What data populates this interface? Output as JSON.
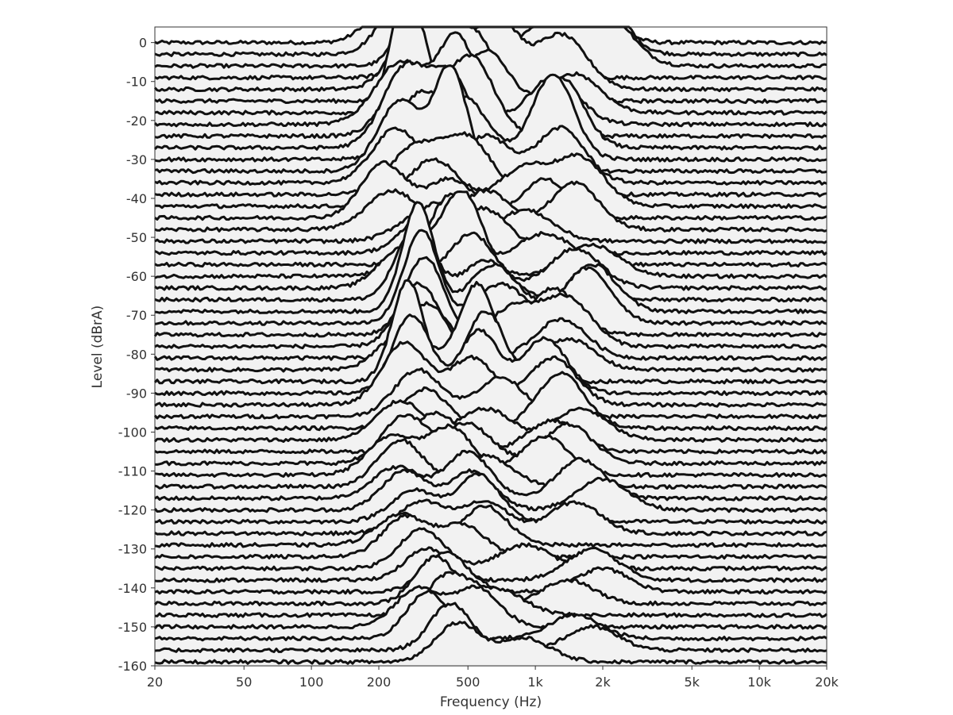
{
  "chart_data": {
    "type": "line",
    "title": "",
    "xlabel": "Frequency (Hz)",
    "ylabel": "Level (dBrA)",
    "x_scale": "log",
    "xlim": [
      20,
      20000
    ],
    "ylim": [
      -160,
      4
    ],
    "x_ticks": [
      {
        "value": 20,
        "label": "20"
      },
      {
        "value": 50,
        "label": "50"
      },
      {
        "value": 100,
        "label": "100"
      },
      {
        "value": 200,
        "label": "200"
      },
      {
        "value": 500,
        "label": "500"
      },
      {
        "value": 1000,
        "label": "1k"
      },
      {
        "value": 2000,
        "label": "2k"
      },
      {
        "value": 5000,
        "label": "5k"
      },
      {
        "value": 10000,
        "label": "10k"
      },
      {
        "value": 20000,
        "label": "20k"
      }
    ],
    "y_ticks": [
      0,
      -10,
      -20,
      -30,
      -40,
      -50,
      -60,
      -70,
      -80,
      -90,
      -100,
      -110,
      -120,
      -130,
      -140,
      -150,
      -160
    ],
    "grid": false,
    "line_color": "#111111",
    "fill_color": "#f2f2f2",
    "series_style": "stacked spectra (waterfall)",
    "series": [
      {
        "offset_db": 0,
        "peaks": [
          {
            "f": 260,
            "h": 18,
            "w": 0.16
          },
          {
            "f": 1050,
            "h": 26,
            "w": 0.12
          },
          {
            "f": 1700,
            "h": 18,
            "w": 0.14
          }
        ]
      },
      {
        "offset_db": -3,
        "peaks": [
          {
            "f": 290,
            "h": 22,
            "w": 0.16
          },
          {
            "f": 700,
            "h": 20,
            "w": 0.14
          },
          {
            "f": 1800,
            "h": 20,
            "w": 0.16
          }
        ]
      },
      {
        "offset_db": -6,
        "peaks": [
          {
            "f": 320,
            "h": 28,
            "w": 0.12
          },
          {
            "f": 1100,
            "h": 10,
            "w": 0.18
          },
          {
            "f": 1900,
            "h": 16,
            "w": 0.18
          }
        ]
      },
      {
        "offset_db": -9,
        "peaks": [
          {
            "f": 360,
            "h": 20,
            "w": 0.15
          },
          {
            "f": 550,
            "h": 28,
            "w": 0.12
          }
        ]
      },
      {
        "offset_db": -12,
        "peaks": [
          {
            "f": 300,
            "h": 18,
            "w": 0.15
          },
          {
            "f": 650,
            "h": 20,
            "w": 0.14
          },
          {
            "f": 1300,
            "h": 14,
            "w": 0.16
          }
        ]
      },
      {
        "offset_db": -15,
        "peaks": [
          {
            "f": 320,
            "h": 24,
            "w": 0.12
          },
          {
            "f": 520,
            "h": 18,
            "w": 0.14
          }
        ]
      },
      {
        "offset_db": -18,
        "peaks": [
          {
            "f": 270,
            "h": 34,
            "w": 0.1
          },
          {
            "f": 600,
            "h": 16,
            "w": 0.15
          },
          {
            "f": 1500,
            "h": 10,
            "w": 0.16
          }
        ]
      },
      {
        "offset_db": -21,
        "peaks": [
          {
            "f": 250,
            "h": 16,
            "w": 0.16
          },
          {
            "f": 450,
            "h": 22,
            "w": 0.12
          },
          {
            "f": 1200,
            "h": 12,
            "w": 0.16
          }
        ]
      },
      {
        "offset_db": -24,
        "peaks": [
          {
            "f": 280,
            "h": 18,
            "w": 0.15
          },
          {
            "f": 520,
            "h": 20,
            "w": 0.14
          }
        ]
      },
      {
        "offset_db": -27,
        "peaks": [
          {
            "f": 260,
            "h": 20,
            "w": 0.14
          },
          {
            "f": 420,
            "h": 18,
            "w": 0.13
          },
          {
            "f": 1300,
            "h": 18,
            "w": 0.14
          }
        ]
      },
      {
        "offset_db": -30,
        "peaks": [
          {
            "f": 300,
            "h": 16,
            "w": 0.15
          },
          {
            "f": 500,
            "h": 14,
            "w": 0.14
          },
          {
            "f": 1200,
            "h": 22,
            "w": 0.13
          }
        ]
      },
      {
        "offset_db": -33,
        "peaks": [
          {
            "f": 250,
            "h": 18,
            "w": 0.14
          },
          {
            "f": 420,
            "h": 26,
            "w": 0.1
          }
        ]
      },
      {
        "offset_db": -36,
        "peaks": [
          {
            "f": 240,
            "h": 14,
            "w": 0.15
          },
          {
            "f": 600,
            "h": 12,
            "w": 0.16
          },
          {
            "f": 1300,
            "h": 14,
            "w": 0.15
          }
        ]
      },
      {
        "offset_db": -39,
        "peaks": [
          {
            "f": 290,
            "h": 12,
            "w": 0.16
          },
          {
            "f": 500,
            "h": 14,
            "w": 0.15
          }
        ]
      },
      {
        "offset_db": -42,
        "peaks": [
          {
            "f": 350,
            "h": 12,
            "w": 0.16
          },
          {
            "f": 900,
            "h": 10,
            "w": 0.16
          },
          {
            "f": 1600,
            "h": 12,
            "w": 0.15
          }
        ]
      },
      {
        "offset_db": -45,
        "peaks": [
          {
            "f": 210,
            "h": 14,
            "w": 0.14
          },
          {
            "f": 420,
            "h": 10,
            "w": 0.15
          },
          {
            "f": 1100,
            "h": 10,
            "w": 0.14
          }
        ]
      },
      {
        "offset_db": -48,
        "peaks": [
          {
            "f": 230,
            "h": 10,
            "w": 0.16
          },
          {
            "f": 600,
            "h": 10,
            "w": 0.16
          },
          {
            "f": 1500,
            "h": 12,
            "w": 0.15
          }
        ]
      },
      {
        "offset_db": -51,
        "peaks": [
          {
            "f": 330,
            "h": 8,
            "w": 0.17
          },
          {
            "f": 900,
            "h": 8,
            "w": 0.17
          }
        ]
      },
      {
        "offset_db": -54,
        "peaks": [
          {
            "f": 350,
            "h": 12,
            "w": 0.16
          },
          {
            "f": 620,
            "h": 10,
            "w": 0.15
          }
        ]
      },
      {
        "offset_db": -57,
        "peaks": [
          {
            "f": 420,
            "h": 18,
            "w": 0.13
          },
          {
            "f": 1100,
            "h": 8,
            "w": 0.17
          }
        ]
      },
      {
        "offset_db": -60,
        "peaks": [
          {
            "f": 310,
            "h": 8,
            "w": 0.16
          },
          {
            "f": 480,
            "h": 20,
            "w": 0.12
          },
          {
            "f": 1800,
            "h": 8,
            "w": 0.17
          }
        ]
      },
      {
        "offset_db": -63,
        "peaks": [
          {
            "f": 250,
            "h": 10,
            "w": 0.14
          },
          {
            "f": 520,
            "h": 14,
            "w": 0.14
          },
          {
            "f": 1500,
            "h": 10,
            "w": 0.16
          }
        ]
      },
      {
        "offset_db": -66,
        "peaks": [
          {
            "f": 290,
            "h": 18,
            "w": 0.12
          },
          {
            "f": 600,
            "h": 10,
            "w": 0.15
          }
        ]
      },
      {
        "offset_db": -69,
        "peaks": [
          {
            "f": 300,
            "h": 28,
            "w": 0.1
          },
          {
            "f": 650,
            "h": 12,
            "w": 0.15
          },
          {
            "f": 1800,
            "h": 12,
            "w": 0.15
          }
        ]
      },
      {
        "offset_db": -72,
        "peaks": [
          {
            "f": 310,
            "h": 24,
            "w": 0.11
          },
          {
            "f": 700,
            "h": 10,
            "w": 0.15
          },
          {
            "f": 1700,
            "h": 14,
            "w": 0.15
          }
        ]
      },
      {
        "offset_db": -75,
        "peaks": [
          {
            "f": 320,
            "h": 20,
            "w": 0.12
          },
          {
            "f": 1200,
            "h": 12,
            "w": 0.15
          }
        ]
      },
      {
        "offset_db": -78,
        "peaks": [
          {
            "f": 300,
            "h": 16,
            "w": 0.13
          },
          {
            "f": 800,
            "h": 10,
            "w": 0.16
          },
          {
            "f": 1400,
            "h": 12,
            "w": 0.15
          }
        ]
      },
      {
        "offset_db": -81,
        "peaks": [
          {
            "f": 330,
            "h": 14,
            "w": 0.13
          },
          {
            "f": 1300,
            "h": 10,
            "w": 0.16
          }
        ]
      },
      {
        "offset_db": -84,
        "peaks": [
          {
            "f": 260,
            "h": 10,
            "w": 0.15
          },
          {
            "f": 550,
            "h": 22,
            "w": 0.11
          },
          {
            "f": 1400,
            "h": 8,
            "w": 0.16
          }
        ]
      },
      {
        "offset_db": -87,
        "peaks": [
          {
            "f": 270,
            "h": 26,
            "w": 0.1
          },
          {
            "f": 600,
            "h": 18,
            "w": 0.12
          }
        ]
      },
      {
        "offset_db": -90,
        "peaks": [
          {
            "f": 280,
            "h": 20,
            "w": 0.12
          },
          {
            "f": 560,
            "h": 16,
            "w": 0.12
          },
          {
            "f": 1100,
            "h": 14,
            "w": 0.14
          }
        ]
      },
      {
        "offset_db": -93,
        "peaks": [
          {
            "f": 260,
            "h": 16,
            "w": 0.14
          },
          {
            "f": 520,
            "h": 12,
            "w": 0.14
          },
          {
            "f": 1200,
            "h": 12,
            "w": 0.15
          }
        ]
      },
      {
        "offset_db": -96,
        "peaks": [
          {
            "f": 300,
            "h": 12,
            "w": 0.15
          },
          {
            "f": 700,
            "h": 10,
            "w": 0.15
          }
        ]
      },
      {
        "offset_db": -99,
        "peaks": [
          {
            "f": 320,
            "h": 10,
            "w": 0.15
          },
          {
            "f": 1300,
            "h": 14,
            "w": 0.15
          }
        ]
      },
      {
        "offset_db": -102,
        "peaks": [
          {
            "f": 250,
            "h": 10,
            "w": 0.15
          },
          {
            "f": 600,
            "h": 8,
            "w": 0.16
          },
          {
            "f": 1600,
            "h": 8,
            "w": 0.16
          }
        ]
      },
      {
        "offset_db": -105,
        "peaks": [
          {
            "f": 360,
            "h": 10,
            "w": 0.15
          },
          {
            "f": 1200,
            "h": 8,
            "w": 0.16
          }
        ]
      },
      {
        "offset_db": -108,
        "peaks": [
          {
            "f": 260,
            "h": 12,
            "w": 0.14
          },
          {
            "f": 500,
            "h": 10,
            "w": 0.15
          },
          {
            "f": 1400,
            "h": 10,
            "w": 0.15
          }
        ]
      },
      {
        "offset_db": -111,
        "peaks": [
          {
            "f": 230,
            "h": 10,
            "w": 0.15
          },
          {
            "f": 420,
            "h": 12,
            "w": 0.14
          },
          {
            "f": 1100,
            "h": 10,
            "w": 0.15
          }
        ]
      },
      {
        "offset_db": -114,
        "peaks": [
          {
            "f": 250,
            "h": 12,
            "w": 0.14
          },
          {
            "f": 600,
            "h": 8,
            "w": 0.16
          }
        ]
      },
      {
        "offset_db": -117,
        "peaks": [
          {
            "f": 240,
            "h": 8,
            "w": 0.15
          },
          {
            "f": 500,
            "h": 12,
            "w": 0.14
          },
          {
            "f": 1600,
            "h": 10,
            "w": 0.15
          }
        ]
      },
      {
        "offset_db": -120,
        "peaks": [
          {
            "f": 260,
            "h": 10,
            "w": 0.14
          },
          {
            "f": 520,
            "h": 10,
            "w": 0.14
          },
          {
            "f": 2000,
            "h": 8,
            "w": 0.16
          }
        ]
      },
      {
        "offset_db": -123,
        "peaks": [
          {
            "f": 290,
            "h": 8,
            "w": 0.15
          },
          {
            "f": 560,
            "h": 12,
            "w": 0.13
          }
        ]
      },
      {
        "offset_db": -126,
        "peaks": [
          {
            "f": 310,
            "h": 8,
            "w": 0.15
          },
          {
            "f": 600,
            "h": 8,
            "w": 0.15
          },
          {
            "f": 1500,
            "h": 8,
            "w": 0.16
          }
        ]
      },
      {
        "offset_db": -129,
        "peaks": [
          {
            "f": 250,
            "h": 8,
            "w": 0.15
          },
          {
            "f": 600,
            "h": 10,
            "w": 0.14
          }
        ]
      },
      {
        "offset_db": -132,
        "peaks": [
          {
            "f": 260,
            "h": 10,
            "w": 0.14
          },
          {
            "f": 470,
            "h": 8,
            "w": 0.15
          }
        ]
      },
      {
        "offset_db": -135,
        "peaks": [
          {
            "f": 310,
            "h": 10,
            "w": 0.14
          },
          {
            "f": 900,
            "h": 6,
            "w": 0.16
          }
        ]
      },
      {
        "offset_db": -138,
        "peaks": [
          {
            "f": 330,
            "h": 8,
            "w": 0.14
          },
          {
            "f": 1800,
            "h": 8,
            "w": 0.16
          }
        ]
      },
      {
        "offset_db": -141,
        "peaks": [
          {
            "f": 400,
            "h": 10,
            "w": 0.14
          },
          {
            "f": 2000,
            "h": 6,
            "w": 0.16
          }
        ]
      },
      {
        "offset_db": -144,
        "peaks": [
          {
            "f": 360,
            "h": 12,
            "w": 0.13
          },
          {
            "f": 1400,
            "h": 6,
            "w": 0.16
          }
        ]
      },
      {
        "offset_db": -147,
        "peaks": [
          {
            "f": 410,
            "h": 10,
            "w": 0.14
          },
          {
            "f": 700,
            "h": 6,
            "w": 0.16
          }
        ]
      },
      {
        "offset_db": -150,
        "peaks": [
          {
            "f": 300,
            "h": 10,
            "w": 0.14
          },
          {
            "f": 550,
            "h": 10,
            "w": 0.14
          }
        ]
      },
      {
        "offset_db": -153,
        "peaks": [
          {
            "f": 330,
            "h": 12,
            "w": 0.13
          },
          {
            "f": 1500,
            "h": 6,
            "w": 0.16
          }
        ]
      },
      {
        "offset_db": -156,
        "peaks": [
          {
            "f": 420,
            "h": 12,
            "w": 0.13
          },
          {
            "f": 1800,
            "h": 6,
            "w": 0.16
          }
        ]
      },
      {
        "offset_db": -159,
        "peaks": [
          {
            "f": 450,
            "h": 10,
            "w": 0.14
          },
          {
            "f": 900,
            "h": 6,
            "w": 0.16
          }
        ]
      }
    ]
  }
}
